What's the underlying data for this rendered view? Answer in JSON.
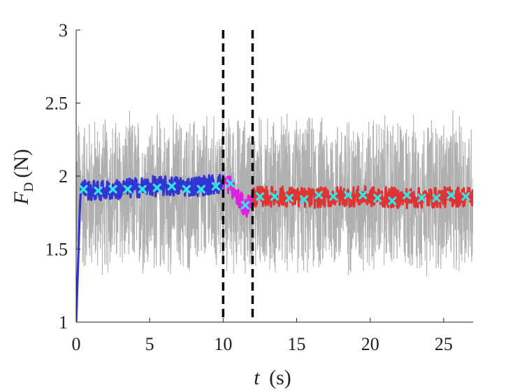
{
  "chart_data": {
    "type": "line",
    "xlabel": {
      "var": "t",
      "unit": "(s)"
    },
    "ylabel": {
      "var": "F",
      "sub": "D",
      "unit": "(N)"
    },
    "xlim": [
      0,
      27
    ],
    "ylim": [
      1,
      3
    ],
    "x_ticks": [
      0,
      5,
      10,
      15,
      20,
      25
    ],
    "x_tick_labels": [
      "0",
      "5",
      "10",
      "15",
      "20",
      "25"
    ],
    "y_ticks": [
      1,
      1.5,
      2,
      2.5,
      3
    ],
    "y_tick_labels": [
      "1",
      "1.5",
      "2",
      "2.5",
      "3"
    ],
    "grid": false,
    "vlines": [
      {
        "x": 10,
        "style": "dashed",
        "color": "#000000"
      },
      {
        "x": 12,
        "style": "dashed",
        "color": "#000000"
      }
    ],
    "series": [
      {
        "role": "raw",
        "color": "#b0b0b0",
        "x_range": [
          0,
          27
        ],
        "mean": 1.87,
        "amplitude": 0.6
      },
      {
        "role": "filtered-before",
        "color": "#3434d4",
        "x_range": [
          0,
          10
        ],
        "x": [
          0,
          0.3,
          1,
          2,
          3,
          4,
          5,
          6,
          7,
          8,
          9,
          10
        ],
        "y": [
          1,
          1.92,
          1.9,
          1.9,
          1.91,
          1.92,
          1.93,
          1.93,
          1.93,
          1.93,
          1.94,
          1.95
        ]
      },
      {
        "role": "filtered-transition",
        "color": "#e020e0",
        "x_range": [
          10,
          12
        ],
        "x": [
          10,
          10.5,
          11,
          11.5,
          12
        ],
        "y": [
          1.96,
          1.94,
          1.85,
          1.78,
          1.84
        ]
      },
      {
        "role": "filtered-after",
        "color": "#e03434",
        "x_range": [
          12,
          27
        ],
        "x": [
          12,
          14,
          16,
          18,
          20,
          22,
          24,
          26,
          27
        ],
        "y": [
          1.86,
          1.86,
          1.85,
          1.86,
          1.86,
          1.85,
          1.85,
          1.86,
          1.86
        ]
      },
      {
        "role": "markers",
        "color": "#33e6e6",
        "marker": "x",
        "x": [
          0.5,
          1.5,
          2.5,
          3.5,
          4.5,
          5.5,
          6.5,
          7.5,
          8.5,
          9.5,
          10.5,
          11.5,
          12.5,
          13.5,
          14.5,
          15.5,
          16.5,
          17.5,
          18.5,
          19.5,
          20.5,
          21.5,
          22.5,
          23.5,
          24.5,
          25.5,
          26.5
        ],
        "y": [
          1.91,
          1.9,
          1.91,
          1.91,
          1.91,
          1.92,
          1.93,
          1.91,
          1.91,
          1.93,
          1.95,
          1.8,
          1.86,
          1.86,
          1.85,
          1.84,
          1.87,
          1.86,
          1.87,
          1.87,
          1.85,
          1.83,
          1.87,
          1.85,
          1.85,
          1.87,
          1.86
        ]
      }
    ]
  }
}
